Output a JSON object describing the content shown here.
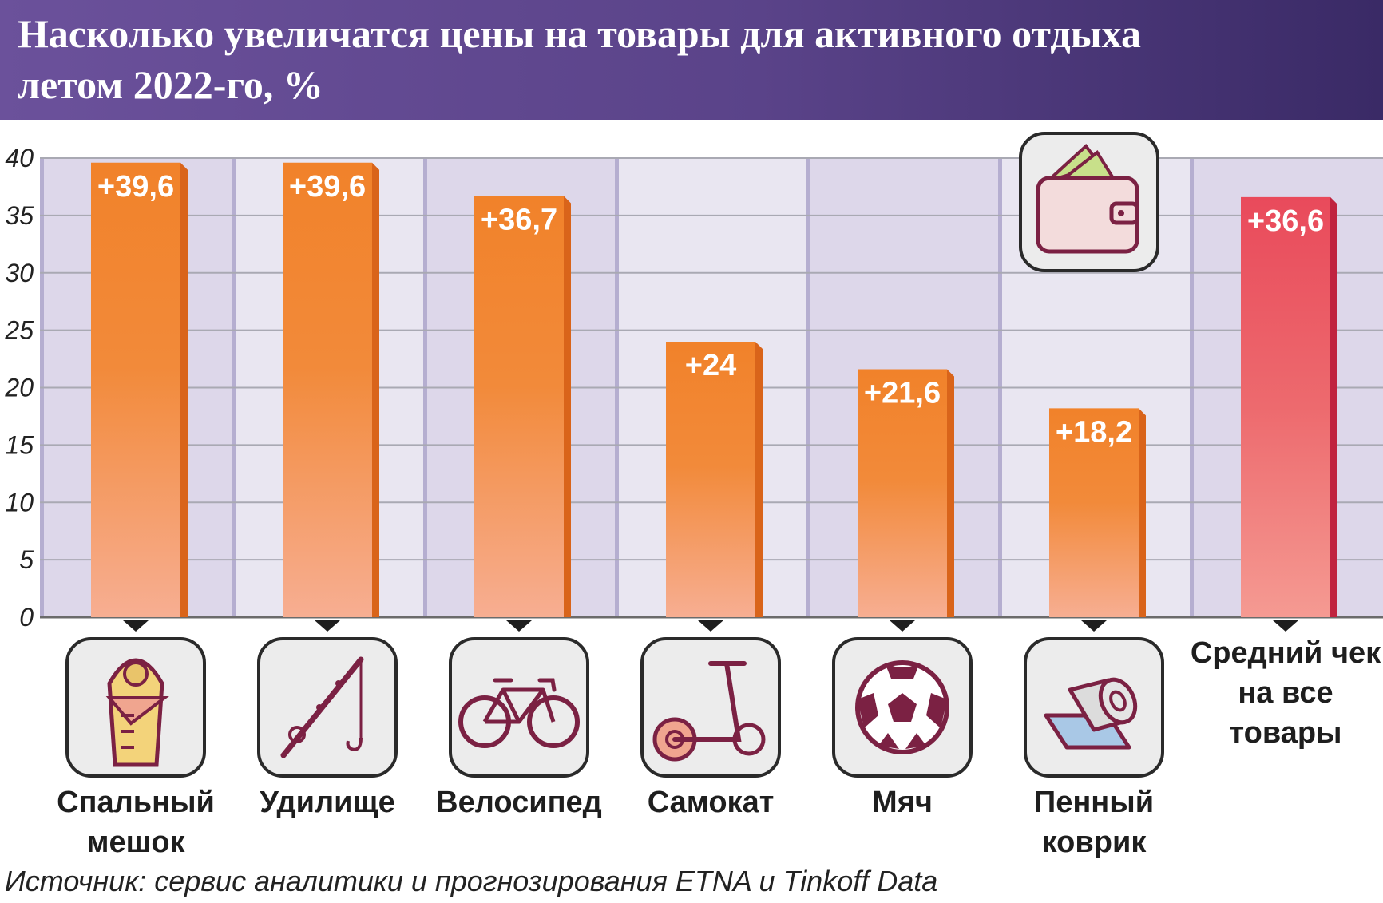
{
  "header": {
    "title_line1": "Насколько увеличатся цены на товары для активного отдыха",
    "title_line2": "летом 2022-го, %"
  },
  "source": "Источник: сервис аналитики и прогнозирования ETNA и Tinkoff Data",
  "colors": {
    "bar_orange": "#f1822a",
    "bar_orange_light": "#f7ae92",
    "bar_red": "#e94a5b",
    "bar_red_light": "#f59a92",
    "panel_dark": "#ddd7ea",
    "panel_light": "#e9e6f1",
    "icon": "#7b2143"
  },
  "chart_data": {
    "type": "bar",
    "title": "Насколько увеличатся цены на товары для активного отдыха летом 2022-го, %",
    "ylim": [
      0,
      40
    ],
    "yticks": [
      0,
      5,
      10,
      15,
      20,
      25,
      30,
      35,
      40
    ],
    "grid": true,
    "categories": [
      {
        "lines": [
          "Спальный",
          "мешок"
        ],
        "icon": "sleeping-bag-icon"
      },
      {
        "lines": [
          "Удилище"
        ],
        "icon": "fishing-rod-icon"
      },
      {
        "lines": [
          "Велосипед"
        ],
        "icon": "bicycle-icon"
      },
      {
        "lines": [
          "Самокат"
        ],
        "icon": "scooter-icon"
      },
      {
        "lines": [
          "Мяч"
        ],
        "icon": "soccer-ball-icon"
      },
      {
        "lines": [
          "Пенный",
          "коврик"
        ],
        "icon": "foam-mat-icon"
      },
      {
        "lines": [
          "Средний чек",
          "на все",
          "товары"
        ],
        "icon": "wallet-icon"
      }
    ],
    "values": [
      39.6,
      39.6,
      36.7,
      24,
      21.6,
      18.2,
      36.6
    ],
    "value_labels": [
      "+39,6",
      "+39,6",
      "+36,7",
      "+24",
      "+21,6",
      "+18,2",
      "+36,6"
    ]
  }
}
